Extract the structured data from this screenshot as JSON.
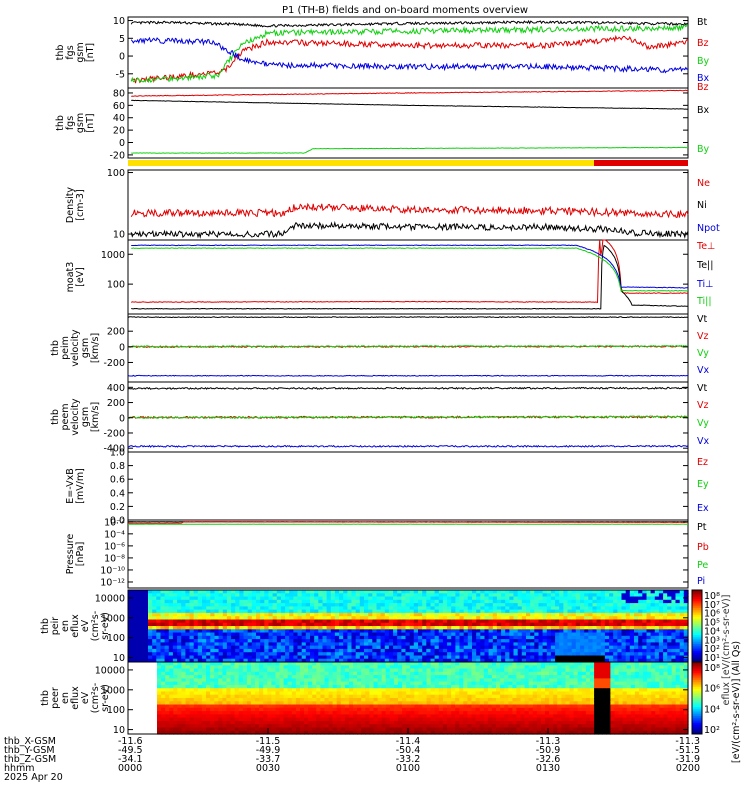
{
  "title": "P1 (TH-B) fields and on-board moments overview",
  "colors": {
    "black": "#000000",
    "red": "#e00000",
    "green": "#10d010",
    "blue": "#0000e0",
    "yellow": "#ffe000",
    "magenta": "#c000c0"
  },
  "chart_data": [
    {
      "type": "line",
      "name_lines": [
        "thb",
        "fgs",
        "gsm",
        "[nT]"
      ],
      "ylim": [
        -9,
        11
      ],
      "y_ticks": [
        "10",
        "5",
        "0",
        "-5"
      ],
      "y_tick_values": [
        10,
        5,
        0,
        -5
      ],
      "series": [
        {
          "name": "Bt",
          "color": "black",
          "x": [
            0.005,
            0.065,
            0.18,
            0.25,
            0.5,
            0.75,
            1.0
          ],
          "values": [
            9.3,
            9.5,
            9.0,
            8.5,
            9.2,
            9.6,
            9.0
          ],
          "noise": 0.35
        },
        {
          "name": "Bz",
          "color": "red",
          "x": [
            0.005,
            0.17,
            0.205,
            0.25,
            0.5,
            0.75,
            0.89,
            0.93,
            1.0
          ],
          "values": [
            -7.0,
            -4.5,
            1.5,
            4.0,
            3.0,
            3.0,
            5.0,
            2.5,
            4.0
          ],
          "noise": 0.8
        },
        {
          "name": "By",
          "color": "green",
          "x": [
            0.005,
            0.16,
            0.2,
            0.25,
            0.5,
            0.75,
            1.0
          ],
          "values": [
            -7.0,
            -5.5,
            3.0,
            6.5,
            7.0,
            7.5,
            8.0
          ],
          "noise": 0.8
        },
        {
          "name": "Bx",
          "color": "blue",
          "x": [
            0.005,
            0.15,
            0.2,
            0.25,
            0.5,
            0.75,
            1.0
          ],
          "values": [
            4.5,
            4.0,
            -0.5,
            -2.5,
            -3.0,
            -3.0,
            -4.0
          ],
          "noise": 0.8
        }
      ]
    },
    {
      "type": "line",
      "name_lines": [
        "thb",
        "fgs",
        "gsm",
        "[nT]"
      ],
      "ylim": [
        -25,
        88
      ],
      "y_ticks": [
        "80",
        "60",
        "40",
        "20",
        "0",
        "-20"
      ],
      "y_tick_values": [
        80,
        60,
        40,
        20,
        0,
        -20
      ],
      "series": [
        {
          "name": "Bz",
          "color": "red",
          "x": [
            0.005,
            0.5,
            1.0
          ],
          "values": [
            75,
            80,
            84
          ],
          "noise": 0.5
        },
        {
          "name": "Bx",
          "color": "black",
          "x": [
            0.005,
            0.5,
            1.0
          ],
          "values": [
            68,
            60,
            54
          ],
          "noise": 0.3
        },
        {
          "name": "By",
          "color": "green",
          "x": [
            0.005,
            0.315,
            0.33,
            1.0
          ],
          "values": [
            -17,
            -17,
            -10,
            -8
          ],
          "noise": 0.3
        }
      ]
    },
    {
      "type": "line",
      "name_lines": [
        "Density",
        "[cm-3]"
      ],
      "yscale": "log",
      "ylim": [
        8,
        110
      ],
      "y_ticks": [
        "100",
        "10"
      ],
      "y_tick_values": [
        100,
        10
      ],
      "series": [
        {
          "name": "Ne",
          "color": "red",
          "x": [
            0.005,
            0.28,
            0.3,
            0.5,
            0.75,
            0.9,
            1.0
          ],
          "values": [
            22,
            22,
            28,
            25,
            24,
            22,
            21
          ],
          "noise": 0.06
        },
        {
          "name": "Ni",
          "color": "black",
          "x": [
            0.005,
            0.28,
            0.3,
            0.5,
            0.75,
            0.85,
            0.9,
            1.0
          ],
          "values": [
            10,
            10,
            14,
            13,
            13,
            12,
            10.5,
            10
          ],
          "noise": 0.05
        },
        {
          "name": "Npot",
          "color": "blue"
        }
      ]
    },
    {
      "type": "line",
      "name_lines": [
        "moat3",
        "[eV]"
      ],
      "yscale": "log",
      "ylim": [
        10,
        3000
      ],
      "y_ticks": [
        "1000",
        "100"
      ],
      "y_tick_values": [
        1000,
        100
      ],
      "series": [
        {
          "name": "Te⊥",
          "color": "red",
          "x": [
            0.005,
            0.5,
            0.84,
            0.842,
            0.845,
            0.848,
            0.88,
            0.884,
            1.0
          ],
          "values": [
            25,
            26,
            25,
            3500,
            25,
            3500,
            80,
            50,
            50
          ],
          "noise": 0.01
        },
        {
          "name": "Te||",
          "color": "black",
          "x": [
            0.005,
            0.5,
            0.845,
            0.85,
            0.88,
            0.9,
            1.0
          ],
          "values": [
            15,
            15,
            15,
            2000,
            60,
            20,
            18
          ],
          "noise": 0.01
        },
        {
          "name": "Ti⊥",
          "color": "blue",
          "x": [
            0.005,
            0.8,
            0.88,
            1.0
          ],
          "values": [
            2000,
            2000,
            80,
            75
          ],
          "noise": 0.01
        },
        {
          "name": "Ti||",
          "color": "green",
          "x": [
            0.005,
            0.8,
            0.88,
            1.0
          ],
          "values": [
            1600,
            1600,
            60,
            60
          ],
          "noise": 0.01
        }
      ]
    },
    {
      "type": "line",
      "name_lines": [
        "thb",
        "peim",
        "velocity",
        "gsm",
        "[km/s]"
      ],
      "ylim": [
        -450,
        420
      ],
      "y_ticks": [
        "200",
        "0",
        "-200"
      ],
      "y_tick_values": [
        200,
        0,
        -200
      ],
      "series": [
        {
          "name": "Vt",
          "color": "black",
          "x": [
            0.0,
            1.0
          ],
          "values": [
            380,
            380
          ],
          "noise": 5
        },
        {
          "name": "Vz",
          "color": "red",
          "x": [
            0.0,
            1.0
          ],
          "values": [
            0,
            5
          ],
          "noise": 8
        },
        {
          "name": "Vy",
          "color": "green",
          "x": [
            0.0,
            1.0
          ],
          "values": [
            5,
            10
          ],
          "noise": 8
        },
        {
          "name": "Vx",
          "color": "blue",
          "x": [
            0.0,
            1.0
          ],
          "values": [
            -370,
            -370
          ],
          "noise": 5
        }
      ]
    },
    {
      "type": "line",
      "name_lines": [
        "thb",
        "peem",
        "velocity",
        "gsm",
        "[km/s]"
      ],
      "ylim": [
        -450,
        470
      ],
      "y_ticks": [
        "400",
        "200",
        "0",
        "-200",
        "-400"
      ],
      "y_tick_values": [
        400,
        200,
        0,
        -200,
        -400
      ],
      "series": [
        {
          "name": "Vt",
          "color": "black",
          "x": [
            0.0,
            1.0
          ],
          "values": [
            385,
            390
          ],
          "noise": 10
        },
        {
          "name": "Vz",
          "color": "red",
          "x": [
            0.0,
            1.0
          ],
          "values": [
            5,
            10
          ],
          "noise": 12
        },
        {
          "name": "Vy",
          "color": "green",
          "x": [
            0.0,
            1.0
          ],
          "values": [
            0,
            15
          ],
          "noise": 10
        },
        {
          "name": "Vx",
          "color": "blue",
          "x": [
            0.0,
            1.0
          ],
          "values": [
            -375,
            -375
          ],
          "noise": 10
        }
      ]
    },
    {
      "type": "line",
      "name_lines": [
        "E=-VxB",
        "[mV/m]"
      ],
      "ylim": [
        0,
        1
      ],
      "y_ticks": [
        "1.0",
        "0.8",
        "0.6",
        "0.4",
        "0.2",
        "0.0"
      ],
      "y_tick_values": [
        1.0,
        0.8,
        0.6,
        0.4,
        0.2,
        0.0
      ],
      "series": [
        {
          "name": "Ez",
          "color": "red"
        },
        {
          "name": "Ey",
          "color": "green"
        },
        {
          "name": "Ex",
          "color": "blue"
        }
      ]
    },
    {
      "type": "line",
      "name_lines": [
        "Pressure",
        "[nPa]"
      ],
      "yscale": "log",
      "ylim": [
        1e-13,
        0.02
      ],
      "y_ticks": [
        "10⁻²",
        "10⁻⁴",
        "10⁻⁶",
        "10⁻⁸",
        "10⁻¹⁰",
        "10⁻¹²"
      ],
      "y_tick_values": [
        0.01,
        0.0001,
        1e-06,
        1e-08,
        1e-10,
        1e-12
      ],
      "series": [
        {
          "name": "Pt",
          "color": "black",
          "x": [
            0.0,
            1.0
          ],
          "values": [
            0.01,
            0.01
          ],
          "noise": 0.02
        },
        {
          "name": "Pb",
          "color": "red",
          "x": [
            0.0,
            0.095,
            0.1,
            1.0
          ],
          "values": [
            0.006,
            0.006,
            0.01,
            0.008
          ],
          "noise": 0.02
        },
        {
          "name": "Pe",
          "color": "green",
          "x": [
            0.0,
            1.0
          ],
          "values": [
            0.004,
            0.004
          ],
          "noise": 0.02
        },
        {
          "name": "Pi",
          "color": "blue"
        }
      ]
    },
    {
      "type": "heatmap",
      "name_lines": [
        "thb",
        "peir",
        "en",
        "eflux",
        "eV",
        "(cm²s-",
        "sr-eV)"
      ],
      "yscale": "log",
      "ylim": [
        6,
        25000
      ],
      "y_ticks": [
        "10000",
        "1000",
        "100",
        "10"
      ],
      "y_tick_values": [
        10000,
        1000,
        100,
        10
      ],
      "colorbar_ticks": [
        "10⁸",
        "10⁷",
        "10⁶",
        "10⁵",
        "10⁴",
        "10³",
        "10²",
        "10¹"
      ]
    },
    {
      "type": "heatmap",
      "name_lines": [
        "thb",
        "peer",
        "en",
        "eflux",
        "eV",
        "(cm²s-",
        "sr-eV)"
      ],
      "yscale": "log",
      "ylim": [
        6,
        25000
      ],
      "y_ticks": [
        "10000",
        "1000",
        "100",
        "10"
      ],
      "y_tick_values": [
        10000,
        1000,
        100,
        10
      ],
      "colorbar_ticks": [
        "10⁸",
        "10⁶",
        "10⁴",
        "10²"
      ]
    }
  ],
  "colorbar_label": "[eV/(cm²-s-sr-eV)] (All Qs)",
  "colorbar_label_top": "eflux [eV/(cm²-s-sr-eV)]",
  "xaxis": {
    "row_labels": [
      "thb_X-GSM",
      "thb_Y-GSM",
      "thb_Z-GSM",
      "hhmm",
      "2025 Apr 20"
    ],
    "columns": [
      {
        "x": -11.6,
        "y": -49.5,
        "z": -34.1,
        "hhmm": "0000"
      },
      {
        "x": -11.5,
        "y": -49.9,
        "z": -33.7,
        "hhmm": "0030"
      },
      {
        "x": -11.4,
        "y": -50.4,
        "z": -33.2,
        "hhmm": "0100"
      },
      {
        "x": -11.3,
        "y": -50.9,
        "z": -32.6,
        "hhmm": "0130"
      },
      {
        "x": -11.3,
        "y": -51.5,
        "z": -31.9,
        "hhmm": "0200"
      }
    ]
  }
}
